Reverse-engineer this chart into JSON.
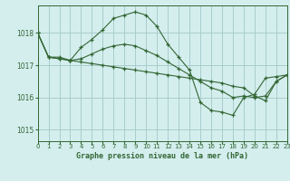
{
  "title": "Graphe pression niveau de la mer (hPa)",
  "bg_color": "#d4eeee",
  "grid_color": "#aacccc",
  "line_color": "#336633",
  "xlim": [
    0,
    23
  ],
  "ylim": [
    1014.65,
    1018.85
  ],
  "yticks": [
    1015,
    1016,
    1017,
    1018
  ],
  "xticks": [
    0,
    1,
    2,
    3,
    4,
    5,
    6,
    7,
    8,
    9,
    10,
    11,
    12,
    13,
    14,
    15,
    16,
    17,
    18,
    19,
    20,
    21,
    22,
    23
  ],
  "series": [
    {
      "x": [
        0,
        1,
        2,
        3,
        4,
        5,
        6,
        7,
        8,
        9,
        10,
        11,
        12,
        13,
        14,
        15,
        16,
        17,
        18,
        19,
        20,
        21,
        22,
        23
      ],
      "y": [
        1018.0,
        1017.25,
        1017.25,
        1017.15,
        1017.55,
        1017.8,
        1018.1,
        1018.45,
        1018.55,
        1018.65,
        1018.55,
        1018.2,
        1017.65,
        1017.25,
        1016.85,
        1015.85,
        1015.6,
        1015.55,
        1015.45,
        1016.0,
        1016.1,
        1016.6,
        1016.65,
        1016.7
      ]
    },
    {
      "x": [
        0,
        1,
        2,
        3,
        4,
        5,
        6,
        7,
        8,
        9,
        10,
        11,
        12,
        13,
        14,
        15,
        16,
        17,
        18,
        19,
        20,
        21,
        22,
        23
      ],
      "y": [
        1018.0,
        1017.25,
        1017.2,
        1017.15,
        1017.2,
        1017.35,
        1017.5,
        1017.6,
        1017.65,
        1017.6,
        1017.45,
        1017.3,
        1017.1,
        1016.9,
        1016.7,
        1016.5,
        1016.3,
        1016.2,
        1016.0,
        1016.05,
        1016.0,
        1016.05,
        1016.5,
        1016.7
      ]
    },
    {
      "x": [
        0,
        1,
        2,
        3,
        4,
        5,
        6,
        7,
        8,
        9,
        10,
        11,
        12,
        13,
        14,
        15,
        16,
        17,
        18,
        19,
        20,
        21,
        22,
        23
      ],
      "y": [
        1018.0,
        1017.25,
        1017.2,
        1017.15,
        1017.1,
        1017.05,
        1017.0,
        1016.95,
        1016.9,
        1016.85,
        1016.8,
        1016.75,
        1016.7,
        1016.65,
        1016.6,
        1016.55,
        1016.5,
        1016.45,
        1016.35,
        1016.3,
        1016.05,
        1015.9,
        1016.5,
        1016.7
      ]
    }
  ]
}
